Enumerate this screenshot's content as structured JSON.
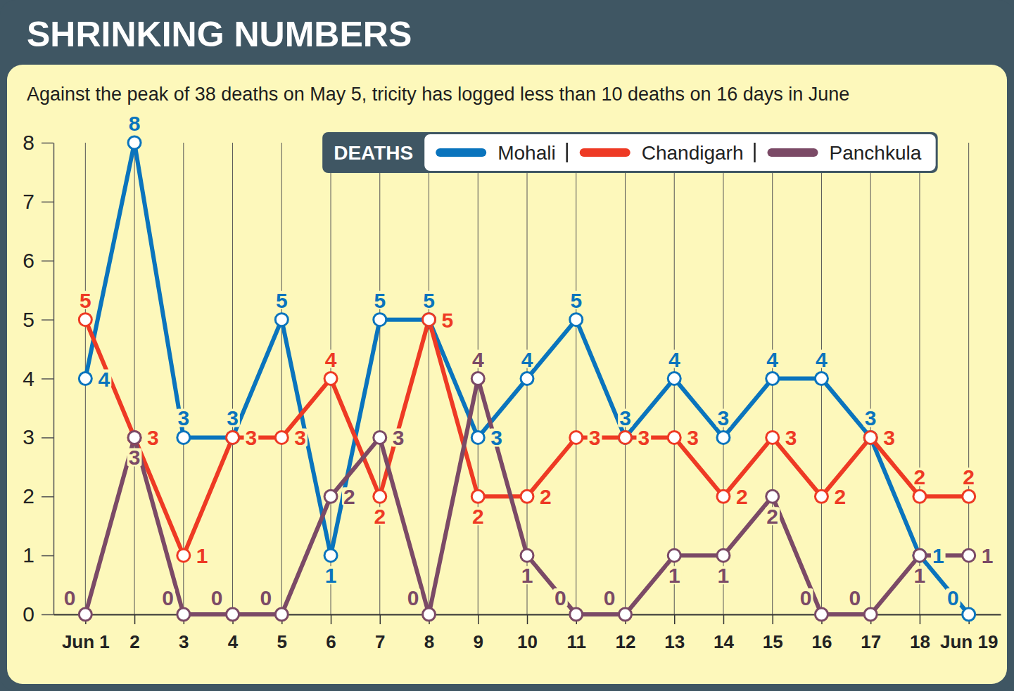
{
  "chart_data": {
    "type": "line",
    "title": "SHRINKING NUMBERS",
    "subtitle": "Against the peak of 38 deaths on May 5, tricity has logged less than 10 deaths on 16 days in June",
    "legend_title": "DEATHS",
    "categories": [
      "Jun 1",
      "2",
      "3",
      "4",
      "5",
      "6",
      "7",
      "8",
      "9",
      "10",
      "11",
      "12",
      "13",
      "14",
      "15",
      "16",
      "17",
      "18",
      "Jun 19"
    ],
    "series": [
      {
        "name": "Mohali",
        "color": "#0a74bd",
        "values": [
          4,
          8,
          3,
          3,
          5,
          1,
          5,
          5,
          3,
          4,
          5,
          3,
          4,
          3,
          4,
          4,
          3,
          1,
          0
        ]
      },
      {
        "name": "Chandigarh",
        "color": "#ee3a24",
        "values": [
          5,
          3,
          1,
          3,
          3,
          4,
          2,
          5,
          2,
          2,
          3,
          3,
          3,
          2,
          3,
          2,
          3,
          2,
          2
        ]
      },
      {
        "name": "Panchkula",
        "color": "#7b4a66",
        "values": [
          0,
          3,
          0,
          0,
          0,
          2,
          3,
          0,
          4,
          1,
          0,
          0,
          1,
          1,
          2,
          0,
          0,
          1,
          1
        ]
      }
    ],
    "ylim": [
      0,
      8
    ],
    "yticks": [
      0,
      1,
      2,
      3,
      4,
      5,
      6,
      7,
      8
    ],
    "grid": "x",
    "legend": "top",
    "data_labels": true,
    "marker": "circle",
    "line_style": "solid"
  }
}
